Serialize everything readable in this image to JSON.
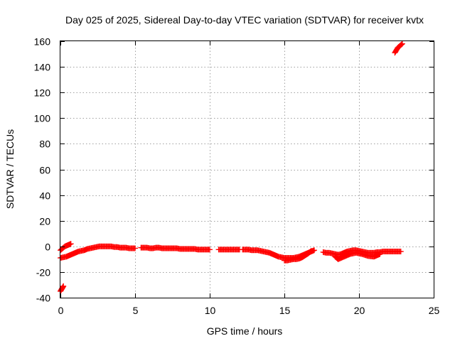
{
  "chart_data": {
    "type": "scatter",
    "title": "Day 025 of 2025, Sidereal Day-to-day VTEC variation (SDTVAR) for receiver kvtx",
    "xlabel": "GPS time / hours",
    "ylabel": "SDTVAR / TECUs",
    "xlim": [
      0,
      25
    ],
    "ylim": [
      -40,
      160
    ],
    "xticks": [
      0,
      5,
      10,
      15,
      20,
      25
    ],
    "yticks": [
      -40,
      -20,
      0,
      20,
      40,
      60,
      80,
      100,
      120,
      140,
      160
    ],
    "grid": true,
    "marker": "+",
    "color": "#ff0000",
    "series": [
      {
        "name": "SDTVAR",
        "segments": [
          {
            "x": [
              0.0,
              0.05,
              0.1,
              0.15,
              0.2
            ],
            "y": [
              -35,
              -34,
              -33,
              -32,
              -31
            ]
          },
          {
            "x": [
              0.0,
              0.1,
              0.2,
              0.3,
              0.4,
              0.5,
              0.6,
              0.7
            ],
            "y": [
              -3,
              -2,
              -1,
              0,
              0.5,
              1,
              1.5,
              2
            ]
          },
          {
            "x": [
              0.0,
              0.2,
              0.4,
              0.6,
              0.8,
              1.0,
              1.2,
              1.4,
              1.6,
              1.8,
              2.0,
              2.2,
              2.4,
              2.6,
              2.8,
              3.0,
              3.2,
              3.4,
              3.6,
              3.8,
              4.0,
              4.2,
              4.4,
              4.6,
              4.8,
              5.0
            ],
            "y": [
              -9,
              -8.5,
              -8,
              -7,
              -6,
              -5,
              -4,
              -3.5,
              -3,
              -2,
              -1.5,
              -1,
              -0.5,
              0,
              0,
              0,
              0,
              0,
              -0.5,
              -0.5,
              -1,
              -1,
              -1,
              -1.5,
              -1.5,
              -1.5
            ]
          },
          {
            "x": [
              5.4,
              5.6,
              5.8,
              6.0,
              6.2,
              6.4,
              6.6,
              6.8,
              7.0,
              7.2,
              7.4,
              7.6,
              7.8,
              8.0,
              8.2,
              8.4,
              8.6,
              8.8,
              9.0,
              9.2,
              9.4,
              9.6,
              9.8,
              10.0
            ],
            "y": [
              -1,
              -1,
              -1,
              -1.5,
              -1.5,
              -1,
              -1,
              -1.5,
              -1.5,
              -1.5,
              -1.5,
              -1.5,
              -1.5,
              -2,
              -2,
              -2,
              -2,
              -2,
              -2,
              -2.5,
              -2.5,
              -2.5,
              -2.5,
              -2.5
            ]
          },
          {
            "x": [
              10.6,
              10.8,
              11.0,
              11.2,
              11.4,
              11.6,
              11.8,
              12.0
            ],
            "y": [
              -2.5,
              -2.5,
              -2.5,
              -2.5,
              -2.5,
              -2.5,
              -2.5,
              -2.5
            ]
          },
          {
            "x": [
              12.2,
              12.4,
              12.6,
              12.8,
              13.0,
              13.2,
              13.4,
              13.6,
              13.8,
              14.0,
              14.2,
              14.4,
              14.6,
              14.8,
              15.0,
              15.2,
              15.4,
              15.6,
              15.8,
              16.0,
              16.2,
              16.4,
              16.6,
              16.8,
              17.0
            ],
            "y": [
              -2.5,
              -2.5,
              -2.5,
              -3,
              -3,
              -3,
              -3.5,
              -4,
              -4.5,
              -5,
              -6,
              -7,
              -8,
              -8.5,
              -9,
              -9,
              -9,
              -9,
              -8.5,
              -8,
              -7,
              -6,
              -5,
              -4,
              -3
            ]
          },
          {
            "x": [
              15.0,
              15.2,
              15.4,
              15.6,
              15.8,
              16.0,
              16.2,
              16.4,
              16.6,
              16.8
            ],
            "y": [
              -11,
              -11,
              -10.5,
              -10,
              -10,
              -9.5,
              -8.5,
              -7,
              -5.5,
              -3.5
            ]
          },
          {
            "x": [
              17.6,
              17.8,
              18.0,
              18.2,
              18.4,
              18.6,
              18.8,
              19.0,
              19.2,
              19.4,
              19.6,
              19.8,
              20.0,
              20.2,
              20.4,
              20.6,
              20.8,
              21.0,
              21.2,
              21.4,
              21.6,
              21.8,
              22.0,
              22.2,
              22.4,
              22.6,
              22.8
            ],
            "y": [
              -4.5,
              -5,
              -5,
              -5.5,
              -6,
              -6.5,
              -6,
              -5,
              -4,
              -3.5,
              -3,
              -3,
              -3.5,
              -4,
              -4.5,
              -5,
              -5,
              -5,
              -4.5,
              -4.5,
              -4,
              -4,
              -4,
              -4,
              -4,
              -4,
              -4
            ]
          },
          {
            "x": [
              18.4,
              18.6,
              19.0,
              19.4,
              19.8,
              20.2,
              20.6,
              21.0,
              21.2,
              21.4
            ],
            "y": [
              -8,
              -10,
              -8,
              -6,
              -5,
              -6,
              -7.5,
              -8,
              -7,
              -6
            ]
          },
          {
            "x": [
              22.4,
              22.5,
              22.6,
              22.7,
              22.8,
              22.9
            ],
            "y": [
              151,
              153,
              155,
              156,
              157,
              158
            ]
          }
        ]
      }
    ]
  }
}
